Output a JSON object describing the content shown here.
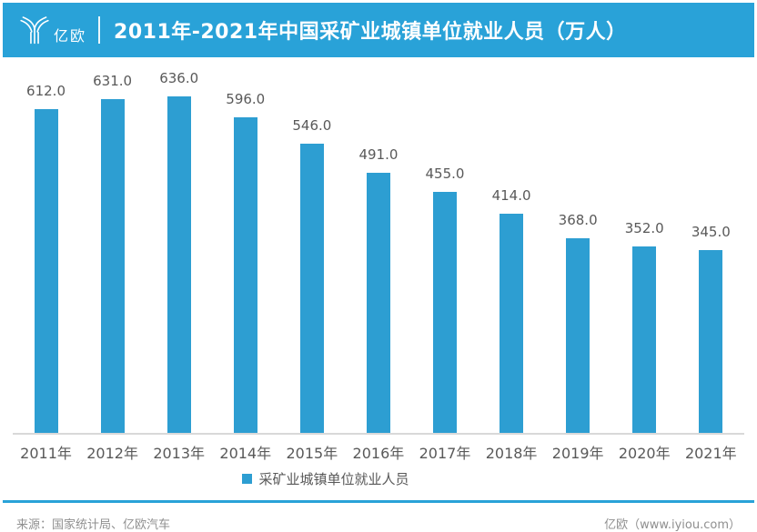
{
  "header": {
    "logo_text": "亿欧",
    "title": "2011年-2021年中国采矿业城镇单位就业人员（万人）",
    "background_color": "#29a2d8",
    "text_color": "#ffffff"
  },
  "chart_data": {
    "type": "bar",
    "title": "2011年-2021年中国采矿业城镇单位就业人员（万人）",
    "categories": [
      "2011年",
      "2012年",
      "2013年",
      "2014年",
      "2015年",
      "2016年",
      "2017年",
      "2018年",
      "2019年",
      "2020年",
      "2021年"
    ],
    "values": [
      612.0,
      631.0,
      636.0,
      596.0,
      546.0,
      491.0,
      455.0,
      414.0,
      368.0,
      352.0,
      345.0
    ],
    "value_labels": [
      "612.0",
      "631.0",
      "636.0",
      "596.0",
      "546.0",
      "491.0",
      "455.0",
      "414.0",
      "368.0",
      "352.0",
      "345.0"
    ],
    "series_name": "采矿业城镇单位就业人员",
    "xlabel": "",
    "ylabel": "",
    "ylim": [
      0,
      710
    ],
    "grid": false,
    "legend_position": "bottom-center",
    "bar_color": "#2d9ed2",
    "value_label_color": "#595959",
    "axis_label_color": "#595959",
    "axis_line_color": "#d9d9d9"
  },
  "legend": {
    "marker_color": "#2d9ed2",
    "label": "采矿业城镇单位就业人员"
  },
  "footer": {
    "source": "来源：国家统计局、亿欧汽车",
    "site": "亿欧（www.iyiou.com）",
    "divider_color": "#29a2d8"
  }
}
